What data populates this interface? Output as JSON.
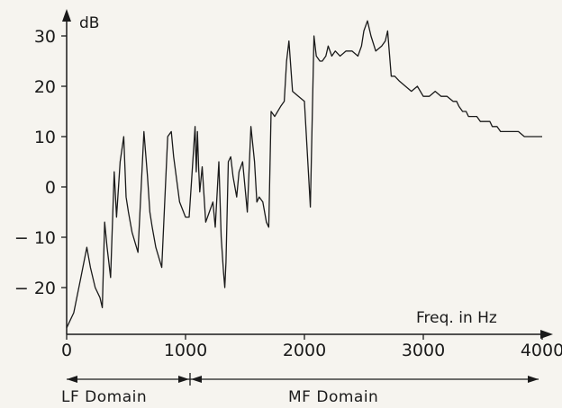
{
  "chart_data": {
    "type": "line",
    "title": "",
    "xlabel": "Freq. in Hz",
    "ylabel": "dB",
    "xlim": [
      0,
      4050
    ],
    "ylim": [
      -28,
      36
    ],
    "x_ticks": [
      0,
      1000,
      2000,
      3000,
      4000
    ],
    "y_ticks": [
      -20,
      -10,
      0,
      10,
      20,
      30
    ],
    "x_tick_labels": [
      "0",
      "1000",
      "2000",
      "3000",
      "4000"
    ],
    "y_tick_labels": [
      "− 20",
      "− 10",
      "0",
      "10",
      "20",
      "30"
    ],
    "grid": false,
    "legend": "none",
    "line_color": "#1a1a1a",
    "domains": [
      {
        "name": "LF Domain",
        "x_start": 0,
        "x_end": 1075
      },
      {
        "name": "MF Domain",
        "x_start": 1075,
        "x_end": 4050
      }
    ],
    "series": [
      {
        "x": [
          0,
          60,
          120,
          170,
          200,
          240,
          280,
          300,
          320,
          340,
          370,
          400,
          420,
          450,
          480,
          500,
          520,
          550,
          600,
          650,
          680,
          700,
          720,
          750,
          800,
          850,
          880,
          900,
          950,
          1000,
          1030,
          1050,
          1080,
          1090,
          1100,
          1110,
          1120,
          1140,
          1170,
          1200,
          1230,
          1250,
          1280,
          1300,
          1320,
          1330,
          1340,
          1360,
          1380,
          1400,
          1430,
          1450,
          1480,
          1520,
          1550,
          1580,
          1600,
          1620,
          1650,
          1680,
          1700,
          1720,
          1750,
          1800,
          1830,
          1850,
          1870,
          1900,
          1950,
          2000,
          2050,
          2080,
          2100,
          2130,
          2150,
          2180,
          2200,
          2230,
          2260,
          2300,
          2350,
          2400,
          2450,
          2480,
          2500,
          2530,
          2560,
          2600,
          2650,
          2680,
          2700,
          2730,
          2760,
          2800,
          2850,
          2900,
          2950,
          3000,
          3050,
          3100,
          3150,
          3200,
          3250,
          3280,
          3300,
          3330,
          3360,
          3380,
          3420,
          3450,
          3480,
          3500,
          3530,
          3560,
          3580,
          3600,
          3620,
          3650,
          3700,
          3750,
          3800,
          3850,
          3900,
          4000
        ],
        "y": [
          -28,
          -25,
          -18,
          -12,
          -16,
          -20,
          -22,
          -24,
          -7,
          -12,
          -18,
          3,
          -6,
          5,
          10,
          -2,
          -5,
          -9,
          -13,
          11,
          2,
          -5,
          -8,
          -12,
          -16,
          10,
          11,
          6,
          -3,
          -6,
          -6,
          1,
          12,
          3,
          11,
          4,
          -1,
          4,
          -7,
          -5,
          -3,
          -8,
          5,
          -10,
          -17,
          -20,
          -15,
          5,
          6,
          2,
          -2,
          3,
          5,
          -5,
          12,
          5,
          -3,
          -2,
          -3,
          -7,
          -8,
          15,
          14,
          16,
          17,
          25,
          29,
          19,
          18,
          17,
          -4,
          30,
          26,
          25,
          25,
          26,
          28,
          26,
          27,
          26,
          27,
          27,
          26,
          28,
          31,
          33,
          30,
          27,
          28,
          29,
          31,
          22,
          22,
          21,
          20,
          19,
          20,
          18,
          18,
          19,
          18,
          18,
          17,
          17,
          16,
          15,
          15,
          14,
          14,
          14,
          13,
          13,
          13,
          13,
          12,
          12,
          12,
          11,
          11,
          11,
          11,
          10,
          10,
          10
        ]
      }
    ]
  }
}
